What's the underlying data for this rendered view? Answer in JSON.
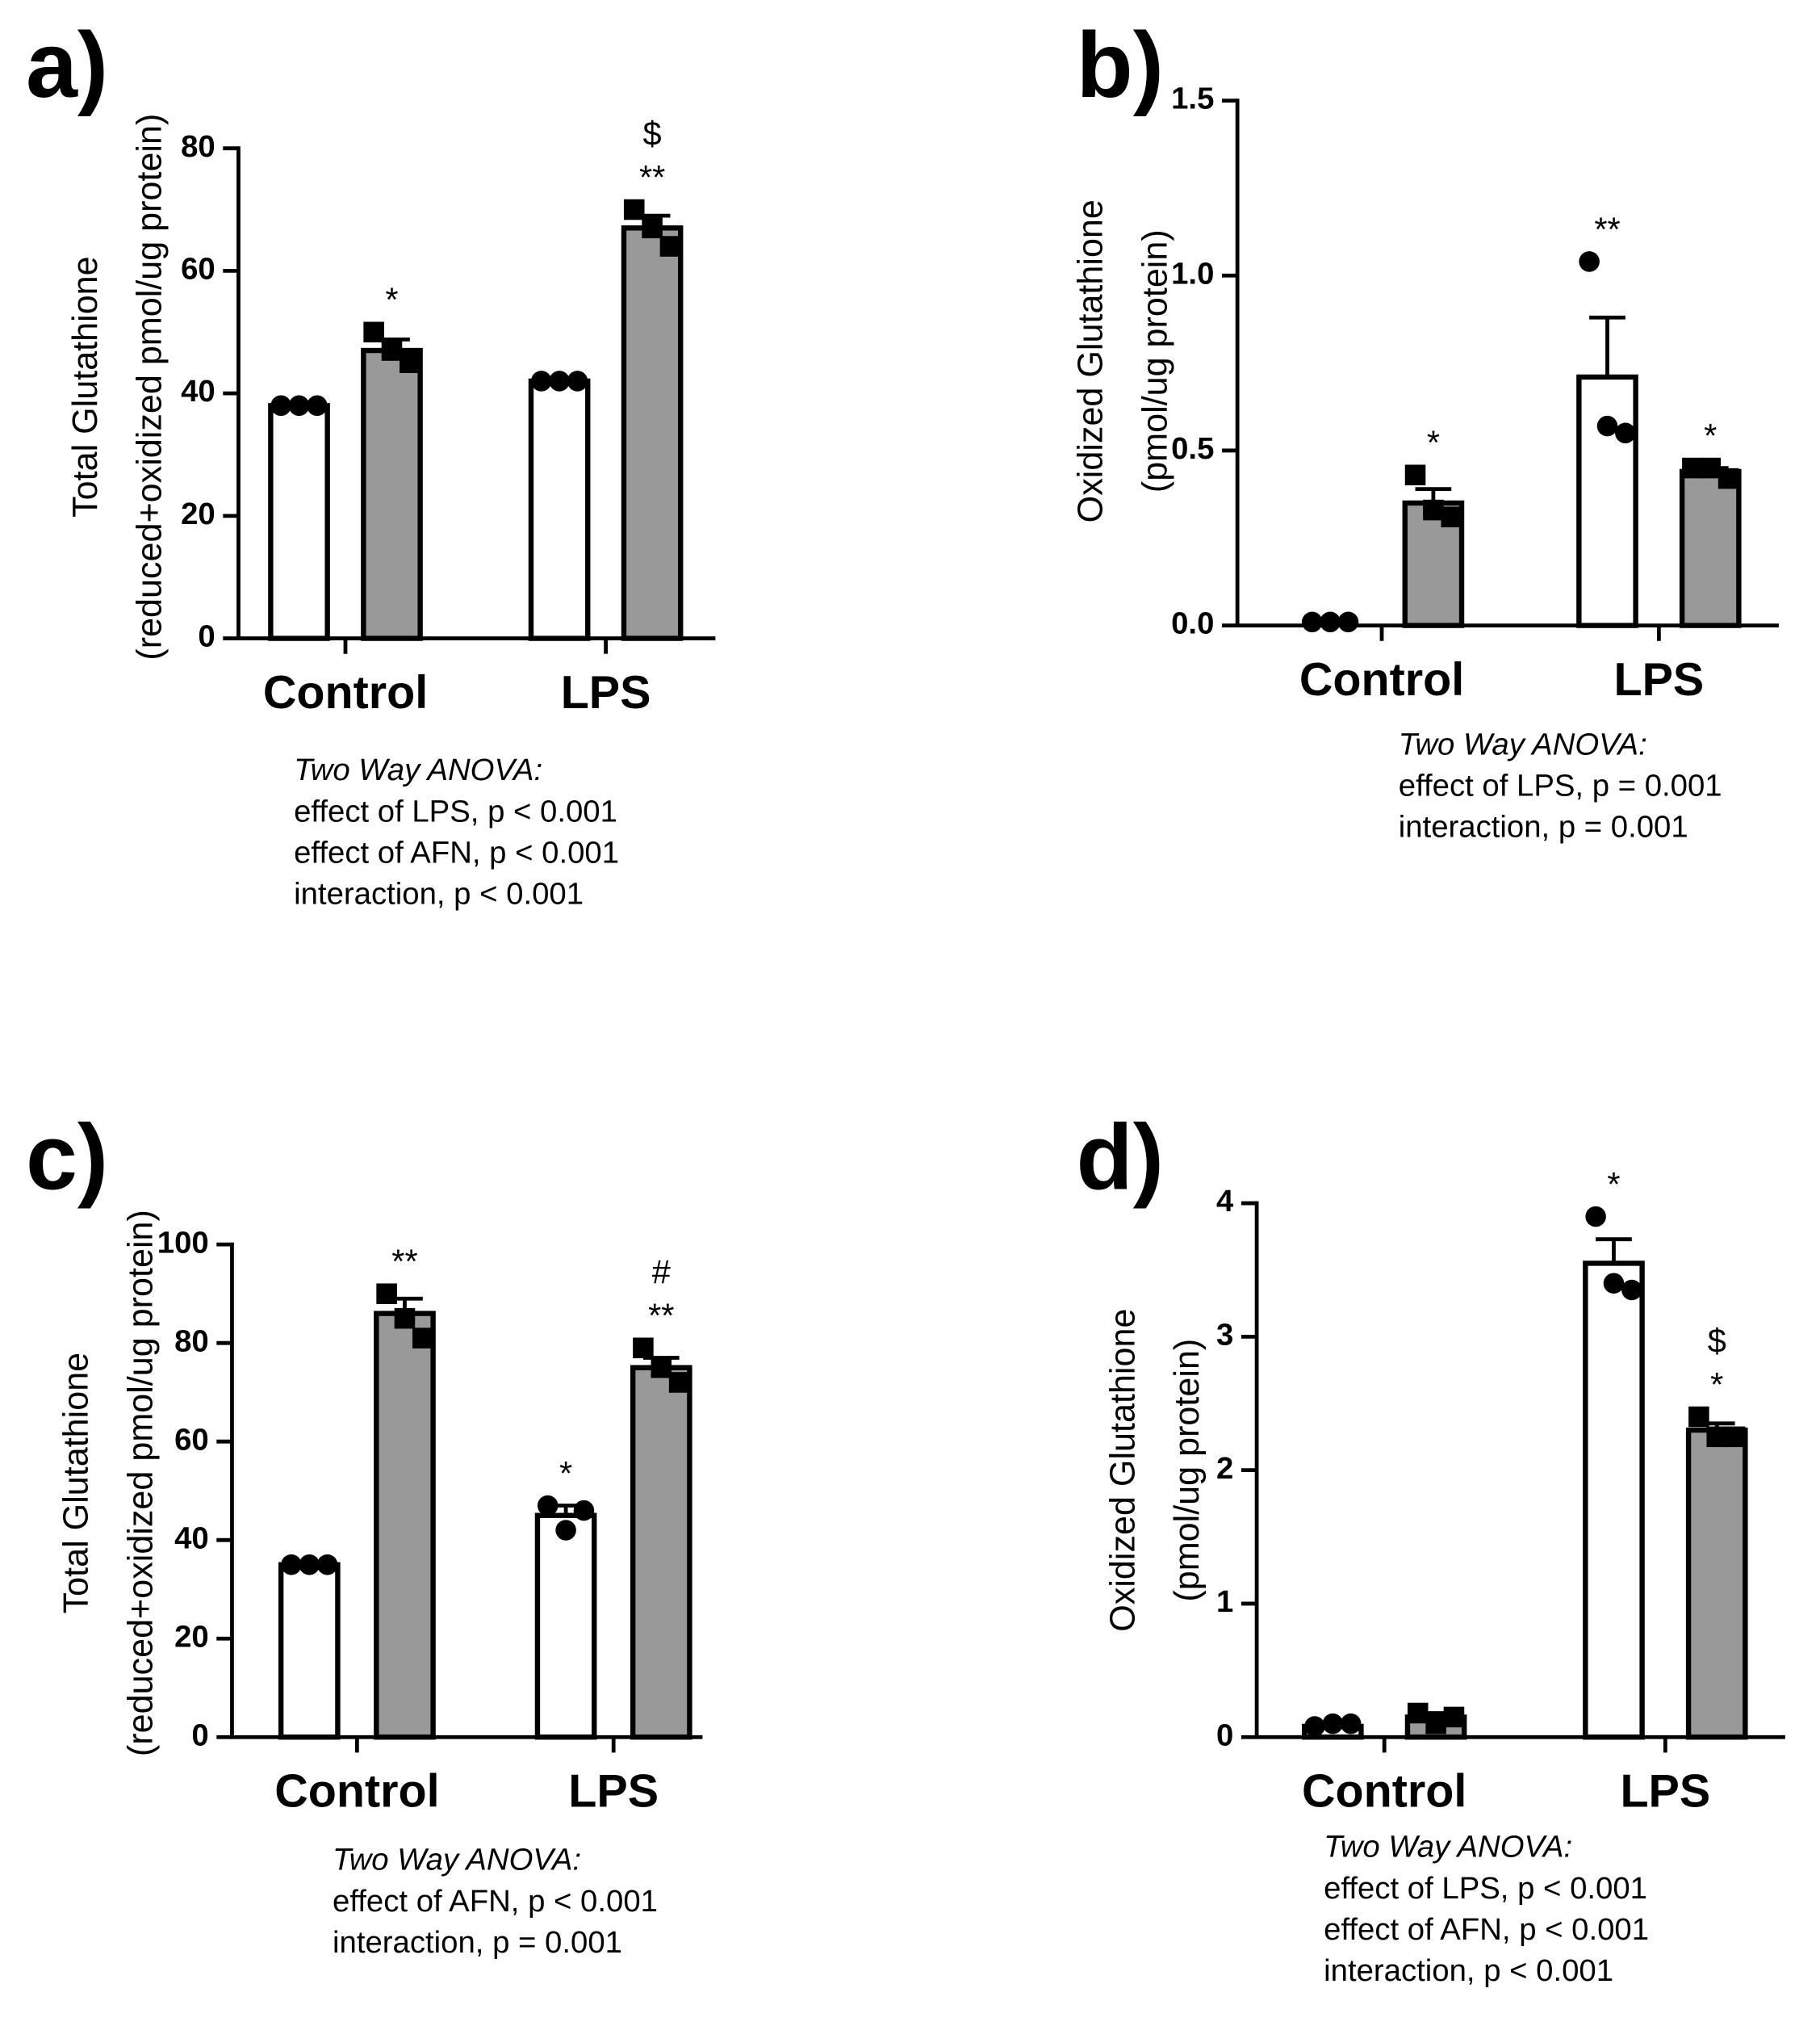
{
  "chart_data": [
    {
      "type": "bar",
      "title": "a)",
      "ylabel": [
        "Total Glutathione",
        "(reduced+oxidized pmol/ug protein)"
      ],
      "categories": [
        "Control",
        "LPS"
      ],
      "ylim": [
        0,
        80
      ],
      "yticks": [
        0,
        20,
        40,
        60,
        80
      ],
      "series": [
        {
          "color": "#ffffff",
          "values": [
            38,
            42
          ],
          "errors": [
            0.3,
            0.3
          ],
          "points": [
            [
              38,
              38,
              38
            ],
            [
              42,
              42,
              42
            ]
          ],
          "marker": "circle",
          "annotations": [
            [],
            []
          ]
        },
        {
          "color": "#999999",
          "values": [
            47,
            67
          ],
          "errors": [
            1.8,
            2
          ],
          "points": [
            [
              50,
              47,
              45
            ],
            [
              70,
              67,
              64
            ]
          ],
          "marker": "square",
          "annotations": [
            [
              "*"
            ],
            [
              "**",
              "$"
            ]
          ]
        }
      ],
      "notes": [
        "Two  Way  ANOVA:",
        "effect of  LPS, p < 0.001",
        "effect of AFN,  p < 0.001",
        "interaction,  p < 0.001"
      ]
    },
    {
      "type": "bar",
      "title": "b)",
      "ylabel": [
        "Oxidized Glutathione",
        "(pmol/ug protein)"
      ],
      "categories": [
        "Control",
        "LPS"
      ],
      "ylim": [
        0,
        1.5
      ],
      "yticks": [
        {
          "value": 0,
          "label": "0.0"
        },
        0.5,
        {
          "value": 1,
          "label": "1.0"
        },
        1.5
      ],
      "series": [
        {
          "color": "#ffffff",
          "values": [
            0,
            0.71
          ],
          "errors": [
            0,
            0.17
          ],
          "points": [
            [
              0.01,
              0.01,
              0.01
            ],
            [
              1.04,
              0.57,
              0.55
            ]
          ],
          "marker": "circle",
          "annotations": [
            [],
            [
              "**"
            ]
          ]
        },
        {
          "color": "#999999",
          "values": [
            0.35,
            0.44
          ],
          "errors": [
            0.04,
            0.01
          ],
          "points": [
            [
              0.43,
              0.33,
              0.31
            ],
            [
              0.45,
              0.45,
              0.42
            ]
          ],
          "marker": "square",
          "annotations": [
            [
              "*"
            ],
            [
              "*"
            ]
          ]
        }
      ],
      "notes": [
        "Two  Way  ANOVA:",
        "effect of  LPS, p = 0.001",
        "interaction, p = 0.001"
      ]
    },
    {
      "type": "bar",
      "title": "c)",
      "ylabel": [
        "Total Glutathione",
        "(reduced+oxidized pmol/ug protein)"
      ],
      "categories": [
        "Control",
        "LPS"
      ],
      "ylim": [
        0,
        100
      ],
      "yticks": [
        0,
        20,
        40,
        60,
        80,
        100
      ],
      "series": [
        {
          "color": "#ffffff",
          "values": [
            35,
            45
          ],
          "errors": [
            0.3,
            2
          ],
          "points": [
            [
              35,
              35,
              35
            ],
            [
              47,
              42,
              46
            ]
          ],
          "marker": "circle",
          "annotations": [
            [],
            [
              "*"
            ]
          ]
        },
        {
          "color": "#999999",
          "values": [
            86,
            75
          ],
          "errors": [
            3,
            2
          ],
          "points": [
            [
              90,
              85,
              81
            ],
            [
              79,
              75,
              72
            ]
          ],
          "marker": "square",
          "annotations": [
            [
              "**"
            ],
            [
              "**",
              "#"
            ]
          ]
        }
      ],
      "notes": [
        "Two  Way  ANOVA:",
        "effect of AFN, p < 0.001",
        "interaction, p = 0.001"
      ]
    },
    {
      "type": "bar",
      "title": "d)",
      "ylabel": [
        "Oxidized Glutathione",
        "(pmol/ug protein)"
      ],
      "categories": [
        "Control",
        "LPS"
      ],
      "ylim": [
        0,
        4
      ],
      "yticks": [
        0,
        1,
        2,
        3,
        4
      ],
      "series": [
        {
          "color": "#ffffff",
          "values": [
            0.08,
            3.55
          ],
          "errors": [
            0.01,
            0.18
          ],
          "points": [
            [
              0.08,
              0.1,
              0.1
            ],
            [
              3.9,
              3.4,
              3.35
            ]
          ],
          "marker": "circle",
          "annotations": [
            [],
            [
              "*"
            ]
          ]
        },
        {
          "color": "#999999",
          "values": [
            0.15,
            2.3
          ],
          "errors": [
            0.03,
            0.05
          ],
          "points": [
            [
              0.18,
              0.1,
              0.15
            ],
            [
              2.4,
              2.25,
              2.25
            ]
          ],
          "marker": "square",
          "annotations": [
            [],
            [
              "*",
              "$"
            ]
          ]
        }
      ],
      "notes": [
        "Two  Way  ANOVA:",
        "effect of  LPS, p < 0.001",
        "effect of AFN,  p < 0.001",
        "interaction,  p < 0.001"
      ]
    }
  ]
}
